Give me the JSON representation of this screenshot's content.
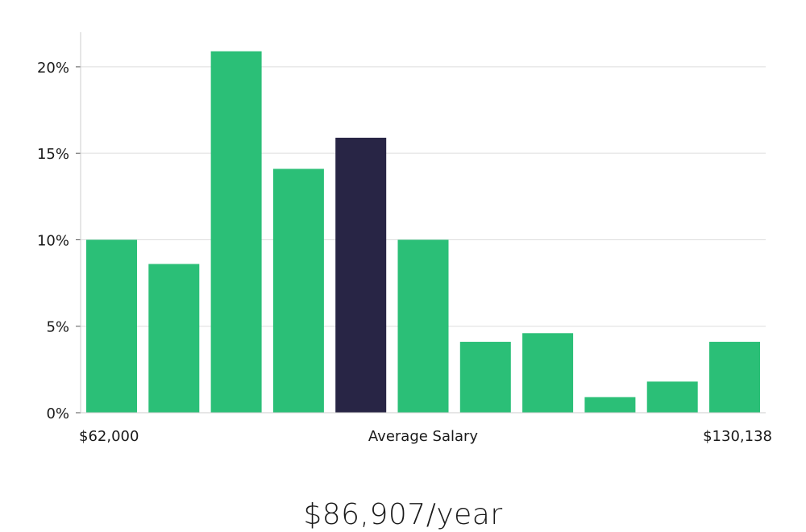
{
  "chart_data": {
    "type": "bar",
    "values": [
      10.0,
      8.6,
      20.9,
      14.1,
      15.9,
      10.0,
      4.1,
      4.6,
      0.9,
      1.8,
      4.1
    ],
    "highlight_index": 4,
    "ylim": [
      0,
      22
    ],
    "yticks": [
      0,
      5,
      10,
      15,
      20
    ],
    "ytick_suffix": "%",
    "xlabel_left": "$62,000",
    "xlabel_center": "Average Salary",
    "xlabel_right": "$130,138",
    "grid": true,
    "colors": {
      "bar": "#2bbf77",
      "highlight": "#282545",
      "grid": "#dddddd",
      "axis": "#cccccc"
    }
  },
  "average_salary_label": "$86,907/year"
}
